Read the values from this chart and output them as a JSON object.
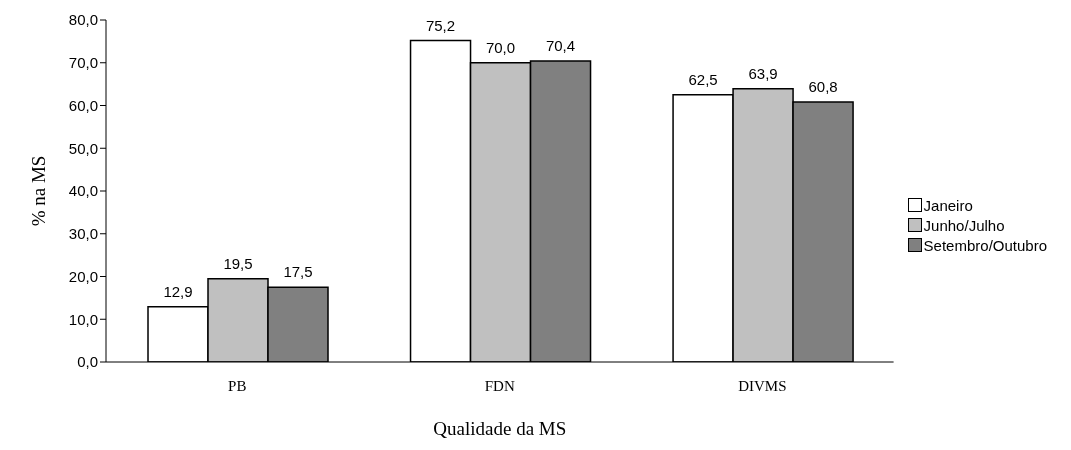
{
  "chart_data": {
    "type": "bar",
    "xlabel": "Qualidade da MS",
    "ylabel": "% na MS",
    "categories": [
      "PB",
      "FDN",
      "DIVMS"
    ],
    "series": [
      {
        "name": "Janeiro",
        "color": "#ffffff",
        "values": [
          12.9,
          75.2,
          62.5
        ],
        "value_labels": [
          "12,9",
          "75,2",
          "62,5"
        ]
      },
      {
        "name": "Junho/Julho",
        "color": "#c0c0c0",
        "values": [
          19.5,
          70.0,
          63.9
        ],
        "value_labels": [
          "19,5",
          "70,0",
          "63,9"
        ]
      },
      {
        "name": "Setembro/Outubro",
        "color": "#808080",
        "values": [
          17.5,
          70.4,
          60.8
        ],
        "value_labels": [
          "17,5",
          "70,4",
          "60,8"
        ]
      }
    ],
    "ylim": [
      0,
      80
    ],
    "yticks": [
      {
        "value": 0,
        "label": "0,0"
      },
      {
        "value": 10,
        "label": "10,0"
      },
      {
        "value": 20,
        "label": "20,0"
      },
      {
        "value": 30,
        "label": "30,0"
      },
      {
        "value": 40,
        "label": "40,0"
      },
      {
        "value": 50,
        "label": "50,0"
      },
      {
        "value": 60,
        "label": "60,0"
      },
      {
        "value": 70,
        "label": "70,0"
      },
      {
        "value": 80,
        "label": "80,0"
      }
    ],
    "grid": false,
    "legend": "right"
  }
}
